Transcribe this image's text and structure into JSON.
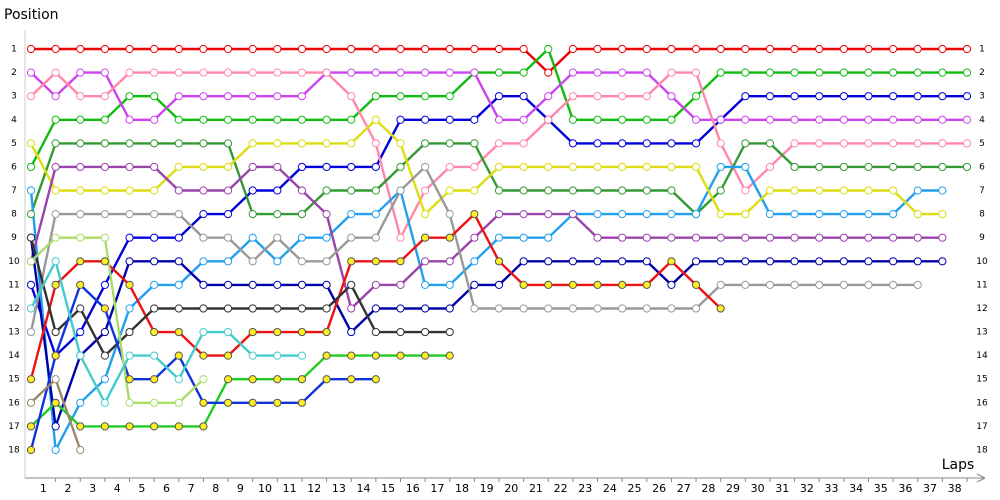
{
  "chart_data": {
    "type": "line",
    "y_label": "Position",
    "x_label": "Laps",
    "x": [
      0,
      1,
      2,
      3,
      4,
      5,
      6,
      7,
      8,
      9,
      10,
      11,
      12,
      13,
      14,
      15,
      16,
      17,
      18,
      19,
      20,
      21,
      22,
      23,
      24,
      25,
      26,
      27,
      28,
      29,
      30,
      31,
      32,
      33,
      34,
      35,
      36,
      37,
      38
    ],
    "xlim": [
      0,
      38
    ],
    "xticks": [
      1,
      2,
      3,
      4,
      5,
      6,
      7,
      8,
      9,
      10,
      11,
      12,
      13,
      14,
      15,
      16,
      17,
      18,
      19,
      20,
      21,
      22,
      23,
      24,
      25,
      26,
      27,
      28,
      29,
      30,
      31,
      32,
      33,
      34,
      35,
      36,
      37,
      38
    ],
    "ylim": [
      1,
      18
    ],
    "yticks": [
      1,
      2,
      3,
      4,
      5,
      6,
      7,
      8,
      9,
      10,
      11,
      12,
      13,
      14,
      15,
      16,
      17,
      18
    ],
    "y_inverted": true,
    "grid": false,
    "series": [
      {
        "color": "#ee0000",
        "marker_color": "#ffffff",
        "values": [
          1,
          1,
          1,
          1,
          1,
          1,
          1,
          1,
          1,
          1,
          1,
          1,
          1,
          1,
          1,
          1,
          1,
          1,
          1,
          1,
          1,
          2,
          1,
          1,
          1,
          1,
          1,
          1,
          1,
          1,
          1,
          1,
          1,
          1,
          1,
          1,
          1,
          1,
          1
        ]
      },
      {
        "color": "#11bb11",
        "marker_color": "#ffffff",
        "values": [
          6,
          4,
          4,
          4,
          3,
          3,
          4,
          4,
          4,
          4,
          4,
          4,
          4,
          4,
          3,
          3,
          3,
          3,
          2,
          2,
          2,
          1,
          4,
          4,
          4,
          4,
          4,
          3,
          2,
          2,
          2,
          2,
          2,
          2,
          2,
          2,
          2,
          2,
          2
        ]
      },
      {
        "color": "#0000dd",
        "marker_color": "#ffffff",
        "values": [
          11,
          14,
          13,
          11,
          9,
          9,
          9,
          8,
          8,
          7,
          7,
          6,
          6,
          6,
          6,
          4,
          4,
          4,
          4,
          3,
          3,
          4,
          5,
          5,
          5,
          5,
          5,
          5,
          4,
          3,
          3,
          3,
          3,
          3,
          3,
          3,
          3,
          3,
          3
        ]
      },
      {
        "color": "#cc44ee",
        "marker_color": "#ffffff",
        "values": [
          2,
          3,
          2,
          2,
          4,
          4,
          3,
          3,
          3,
          3,
          3,
          3,
          2,
          2,
          2,
          2,
          2,
          2,
          2,
          4,
          4,
          3,
          2,
          2,
          2,
          2,
          3,
          4,
          4,
          4,
          4,
          4,
          4,
          4,
          4,
          4,
          4,
          4,
          4
        ]
      },
      {
        "color": "#ff88aa",
        "marker_color": "#ffffff",
        "values": [
          3,
          2,
          3,
          3,
          2,
          2,
          2,
          2,
          2,
          2,
          2,
          2,
          2,
          3,
          5,
          9,
          7,
          6,
          6,
          5,
          5,
          4,
          3,
          3,
          3,
          3,
          2,
          2,
          5,
          7,
          6,
          5,
          5,
          5,
          5,
          5,
          5,
          5,
          5
        ]
      },
      {
        "color": "#339933",
        "marker_color": "#ffffff",
        "values": [
          8,
          5,
          5,
          5,
          5,
          5,
          5,
          5,
          5,
          8,
          8,
          8,
          7,
          7,
          7,
          6,
          5,
          5,
          5,
          7,
          7,
          7,
          7,
          7,
          7,
          7,
          7,
          8,
          7,
          5,
          5,
          6,
          6,
          6,
          6,
          6,
          6,
          6,
          6
        ]
      },
      {
        "color": "#22a0ee",
        "marker_color": "#ffffff",
        "values": [
          7,
          18,
          16,
          15,
          12,
          11,
          11,
          10,
          10,
          9,
          10,
          9,
          9,
          8,
          8,
          7,
          11,
          11,
          10,
          9,
          9,
          9,
          8,
          8,
          8,
          8,
          8,
          8,
          6,
          6,
          8,
          8,
          8,
          8,
          8,
          8,
          7,
          7,
          null
        ]
      },
      {
        "color": "#dddd11",
        "marker_color": "#ffffff",
        "values": [
          5,
          7,
          7,
          7,
          7,
          7,
          6,
          6,
          6,
          5,
          5,
          5,
          5,
          5,
          4,
          5,
          8,
          7,
          7,
          6,
          6,
          6,
          6,
          6,
          6,
          6,
          6,
          6,
          8,
          8,
          7,
          7,
          7,
          7,
          7,
          7,
          8,
          8,
          null
        ]
      },
      {
        "color": "#9944aa",
        "marker_color": "#ffffff",
        "values": [
          10,
          6,
          6,
          6,
          6,
          6,
          7,
          7,
          7,
          6,
          6,
          7,
          8,
          12,
          11,
          11,
          10,
          10,
          9,
          8,
          8,
          8,
          8,
          9,
          9,
          9,
          9,
          9,
          9,
          9,
          9,
          9,
          9,
          9,
          9,
          9,
          9,
          9,
          null
        ]
      },
      {
        "color": "#0000aa",
        "marker_color": "#ffffff",
        "values": [
          9,
          17,
          14,
          13,
          10,
          10,
          10,
          11,
          11,
          11,
          11,
          11,
          11,
          13,
          12,
          12,
          12,
          12,
          11,
          11,
          10,
          10,
          10,
          10,
          10,
          10,
          11,
          10,
          10,
          10,
          10,
          10,
          10,
          10,
          10,
          10,
          10,
          10,
          null
        ]
      },
      {
        "color": "#999999",
        "marker_color": "#ffffff",
        "values": [
          13,
          8,
          8,
          8,
          8,
          8,
          8,
          9,
          9,
          10,
          9,
          10,
          10,
          9,
          9,
          7,
          6,
          8,
          12,
          12,
          12,
          12,
          12,
          12,
          12,
          12,
          12,
          12,
          11,
          11,
          11,
          11,
          11,
          11,
          11,
          11,
          11,
          null,
          null
        ]
      },
      {
        "color": "#ee1111",
        "marker_color": "#ffee22",
        "values": [
          15,
          11,
          10,
          10,
          11,
          13,
          13,
          14,
          14,
          13,
          13,
          13,
          13,
          10,
          10,
          10,
          9,
          9,
          8,
          10,
          11,
          11,
          11,
          11,
          11,
          11,
          10,
          11,
          12,
          null,
          null,
          null,
          null,
          null,
          null,
          null,
          null,
          null,
          null
        ]
      },
      {
        "color": "#333333",
        "marker_color": "#ffffff",
        "values": [
          9,
          13,
          12,
          14,
          13,
          12,
          12,
          12,
          12,
          12,
          12,
          12,
          12,
          11,
          13,
          13,
          13,
          13,
          null,
          null,
          null,
          null,
          null,
          null,
          null,
          null,
          null,
          null,
          null,
          null,
          null,
          null,
          null,
          null,
          null,
          null,
          null,
          null,
          null
        ]
      },
      {
        "color": "#22cc22",
        "marker_color": "#ffee22",
        "values": [
          17,
          16,
          17,
          17,
          17,
          17,
          17,
          17,
          15,
          15,
          15,
          15,
          14,
          14,
          14,
          14,
          14,
          14,
          null,
          null,
          null,
          null,
          null,
          null,
          null,
          null,
          null,
          null,
          null,
          null,
          null,
          null,
          null,
          null,
          null,
          null,
          null,
          null,
          null
        ]
      },
      {
        "color": "#1133dd",
        "marker_color": "#ffee22",
        "values": [
          18,
          14,
          11,
          12,
          15,
          15,
          14,
          16,
          16,
          16,
          16,
          16,
          15,
          15,
          15,
          null,
          null,
          null,
          null,
          null,
          null,
          null,
          null,
          null,
          null,
          null,
          null,
          null,
          null,
          null,
          null,
          null,
          null,
          null,
          null,
          null,
          null,
          null,
          null
        ]
      },
      {
        "color": "#aadd66",
        "marker_color": "#ffffff",
        "values": [
          10,
          9,
          9,
          9,
          16,
          16,
          16,
          15,
          null,
          null,
          null,
          null,
          null,
          null,
          null,
          null,
          null,
          null,
          null,
          null,
          null,
          null,
          null,
          null,
          null,
          null,
          null,
          null,
          null,
          null,
          null,
          null,
          null,
          null,
          null,
          null,
          null,
          null,
          null
        ]
      },
      {
        "color": "#44cccc",
        "marker_color": "#ffffff",
        "values": [
          12,
          10,
          14,
          16,
          14,
          14,
          15,
          13,
          13,
          14,
          14,
          14,
          null,
          null,
          null,
          null,
          null,
          null,
          null,
          null,
          null,
          null,
          null,
          null,
          null,
          null,
          null,
          null,
          null,
          null,
          null,
          null,
          null,
          null,
          null,
          null,
          null,
          null,
          null
        ]
      },
      {
        "color": "#998866",
        "marker_color": "#ffffff",
        "values": [
          16,
          15,
          18,
          null,
          null,
          null,
          null,
          null,
          null,
          null,
          null,
          null,
          null,
          null,
          null,
          null,
          null,
          null,
          null,
          null,
          null,
          null,
          null,
          null,
          null,
          null,
          null,
          null,
          null,
          null,
          null,
          null,
          null,
          null,
          null,
          null,
          null,
          null,
          null
        ]
      }
    ]
  }
}
